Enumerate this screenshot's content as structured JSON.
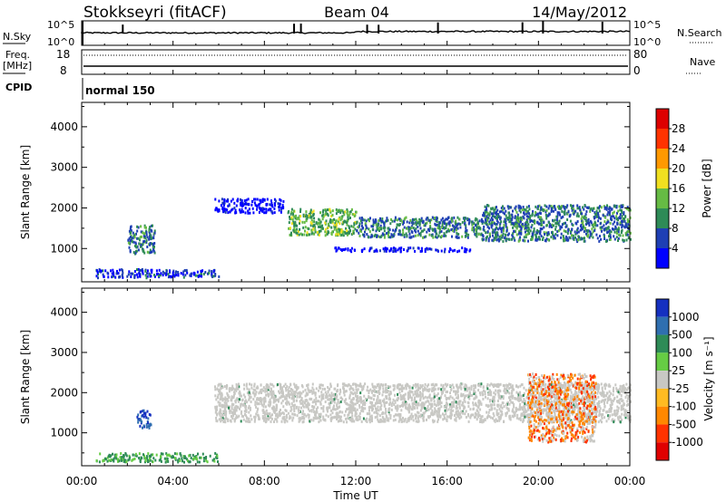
{
  "header": {
    "station": "Stokkseyri (fitACF)",
    "beam": "Beam 04",
    "date": "14/May/2012"
  },
  "noise_panel": {
    "left_label": "N.Sky",
    "right_label": "N.Search",
    "left_ticks": [
      "10^5",
      "10^0"
    ],
    "right_ticks": [
      "10^5",
      "10^0"
    ]
  },
  "freq_panel": {
    "left_label_line1": "Freq.",
    "left_label_line2": "[MHz]",
    "right_label": "Nave",
    "left_ticks": [
      "18",
      "8"
    ],
    "right_ticks": [
      "80",
      "0"
    ]
  },
  "cpid": {
    "label": "CPID",
    "mode": "normal 150"
  },
  "power_panel": {
    "ylabel": "Slant Range [km]",
    "colorbar_label": "Power [dB]"
  },
  "velocity_panel": {
    "ylabel": "Slant Range [km]",
    "colorbar_label": "Velocity [m s⁻¹]"
  },
  "xlabel": "Time UT",
  "chart_data": [
    {
      "type": "heatmap",
      "name": "power",
      "x_range": [
        "00:00",
        "24:00"
      ],
      "x_ticks": [
        "00:00",
        "04:00",
        "08:00",
        "12:00",
        "16:00",
        "20:00",
        "00:00"
      ],
      "ylim": [
        180,
        4600
      ],
      "y_ticks": [
        1000,
        2000,
        3000,
        4000
      ],
      "colorbar_ticks": [
        4,
        8,
        12,
        16,
        20,
        24,
        28
      ],
      "colorbar_colors": [
        "#0000ff",
        "#1e3fb4",
        "#2e8b57",
        "#66bb44",
        "#f0e020",
        "#ff9900",
        "#ff3300",
        "#dd0000"
      ],
      "echo_bands": [
        {
          "t_start": 0.6,
          "t_end": 3.0,
          "range_start": 300,
          "range_end": 520,
          "level": 2
        },
        {
          "t_start": 3.0,
          "t_end": 6.0,
          "range_start": 320,
          "range_end": 500,
          "level": 2
        },
        {
          "t_start": 2.0,
          "t_end": 3.2,
          "range_start": 900,
          "range_end": 1600,
          "level": 3
        },
        {
          "t_start": 5.8,
          "t_end": 8.8,
          "range_start": 1900,
          "range_end": 2250,
          "level": 1
        },
        {
          "t_start": 9.0,
          "t_end": 12.0,
          "range_start": 1350,
          "range_end": 2000,
          "level": 4
        },
        {
          "t_start": 12.0,
          "t_end": 17.5,
          "range_start": 1300,
          "range_end": 1800,
          "level": 3
        },
        {
          "t_start": 17.5,
          "t_end": 24.0,
          "range_start": 1200,
          "range_end": 2100,
          "level": 3
        },
        {
          "t_start": 11.0,
          "t_end": 17.0,
          "range_start": 950,
          "range_end": 1050,
          "level": 1
        }
      ]
    },
    {
      "type": "heatmap",
      "name": "velocity",
      "x_range": [
        "00:00",
        "24:00"
      ],
      "x_ticks": [
        "00:00",
        "04:00",
        "08:00",
        "12:00",
        "16:00",
        "20:00",
        "00:00"
      ],
      "ylim": [
        180,
        4600
      ],
      "y_ticks": [
        1000,
        2000,
        3000,
        4000
      ],
      "colorbar_ticks": [
        1000,
        500,
        100,
        25,
        -25,
        -100,
        -500,
        -1000
      ],
      "colorbar_colors": [
        "#1530c0",
        "#2f6fb0",
        "#2e8b57",
        "#66cc44",
        "#c8c8c4",
        "#ffbb22",
        "#ff8800",
        "#ff3300",
        "#e00000"
      ],
      "echo_bands": [
        {
          "t_start": 0.6,
          "t_end": 6.0,
          "range_start": 300,
          "range_end": 520,
          "class": "+100"
        },
        {
          "t_start": 2.4,
          "t_end": 3.0,
          "range_start": 1150,
          "range_end": 1600,
          "class": "+1000"
        },
        {
          "t_start": 5.8,
          "t_end": 24.0,
          "range_start": 1300,
          "range_end": 2250,
          "class": "ground"
        },
        {
          "t_start": 19.5,
          "t_end": 22.5,
          "range_start": 800,
          "range_end": 2500,
          "class": "-100"
        }
      ]
    }
  ]
}
